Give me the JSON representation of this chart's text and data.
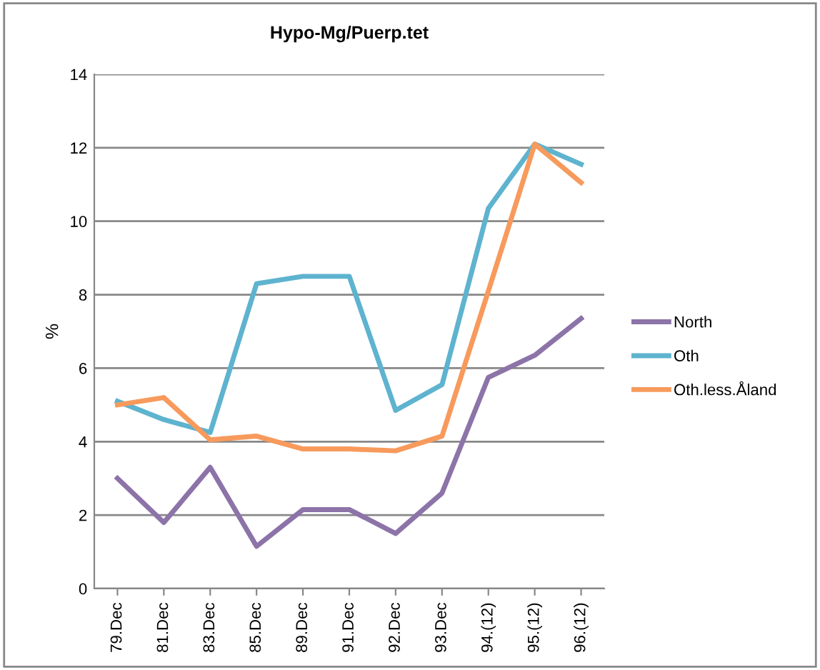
{
  "chart_data": {
    "type": "line",
    "title": "Hypo-Mg/Puerp.tet",
    "ylabel": "%",
    "categories": [
      "79.Dec",
      "81.Dec",
      "83.Dec",
      "85.Dec",
      "89.Dec",
      "91.Dec",
      "92.Dec",
      "93.Dec",
      "94.(12)",
      "95.(12)",
      "96.(12)"
    ],
    "series": [
      {
        "name": "North",
        "color": "#8c73a8",
        "values": [
          3.0,
          1.8,
          3.3,
          1.15,
          2.15,
          2.15,
          1.5,
          2.6,
          5.75,
          6.35,
          7.35
        ]
      },
      {
        "name": "Oth",
        "color": "#5eb3cf",
        "values": [
          5.1,
          4.6,
          4.25,
          8.3,
          8.5,
          8.5,
          4.85,
          5.55,
          10.35,
          12.1,
          11.55
        ]
      },
      {
        "name": "Oth.less.Åland",
        "color": "#f79a5c",
        "values": [
          5.0,
          5.2,
          4.05,
          4.15,
          3.8,
          3.8,
          3.75,
          4.15,
          8.1,
          12.1,
          11.05
        ]
      }
    ],
    "ylim": [
      0,
      14
    ],
    "yticks": [
      0,
      2,
      4,
      6,
      8,
      10,
      12,
      14
    ],
    "grid": "y",
    "legend": "right",
    "marker": "none",
    "line_style": "solid"
  }
}
